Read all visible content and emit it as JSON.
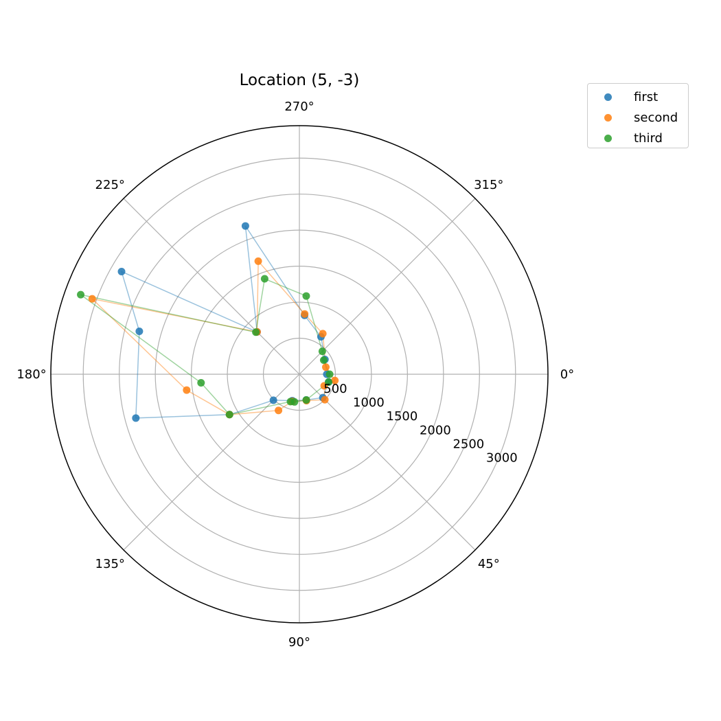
{
  "chart_data": {
    "type": "scatter",
    "projection": "polar",
    "title": "Location (5, -3)",
    "theta_direction": "clockwise",
    "theta_zero": "east",
    "angle_tick_labels": [
      "0°",
      "45°",
      "90°",
      "135°",
      "180°",
      "225°",
      "270°",
      "315°"
    ],
    "radial_ticks": [
      500,
      1000,
      1500,
      2000,
      2500,
      3000
    ],
    "radial_tick_labels": [
      "500",
      "1000",
      "1500",
      "2000",
      "2500",
      "3000"
    ],
    "rlim": [
      0,
      3450
    ],
    "grid": true,
    "legend_position": "upper-right-outside",
    "series": [
      {
        "name": "first",
        "color": "#1f77b4",
        "points": [
          {
            "theta": 0,
            "r": 380
          },
          {
            "theta": 15,
            "r": 420
          },
          {
            "theta": 45,
            "r": 460
          },
          {
            "theta": 75,
            "r": 370
          },
          {
            "theta": 105,
            "r": 380
          },
          {
            "theta": 135,
            "r": 510
          },
          {
            "theta": 150,
            "r": 1120
          },
          {
            "theta": 165,
            "r": 2350
          },
          {
            "theta": 195,
            "r": 2300
          },
          {
            "theta": 210,
            "r": 2850
          },
          {
            "theta": 225,
            "r": 830
          },
          {
            "theta": 250,
            "r": 2190
          },
          {
            "theta": 275,
            "r": 820
          },
          {
            "theta": 300,
            "r": 600
          },
          {
            "theta": 330,
            "r": 410
          }
        ]
      },
      {
        "name": "second",
        "color": "#ff7f0e",
        "points": [
          {
            "theta": 10,
            "r": 500
          },
          {
            "theta": 25,
            "r": 380
          },
          {
            "theta": 45,
            "r": 500
          },
          {
            "theta": 75,
            "r": 380
          },
          {
            "theta": 105,
            "r": 390
          },
          {
            "theta": 120,
            "r": 580
          },
          {
            "theta": 150,
            "r": 1120
          },
          {
            "theta": 172,
            "r": 1580
          },
          {
            "theta": 200,
            "r": 3060
          },
          {
            "theta": 225,
            "r": 830
          },
          {
            "theta": 250,
            "r": 1670
          },
          {
            "theta": 275,
            "r": 840
          },
          {
            "theta": 300,
            "r": 650
          },
          {
            "theta": 345,
            "r": 380
          }
        ]
      },
      {
        "name": "third",
        "color": "#2ca02c",
        "points": [
          {
            "theta": 0,
            "r": 420
          },
          {
            "theta": 15,
            "r": 420
          },
          {
            "theta": 75,
            "r": 370
          },
          {
            "theta": 100,
            "r": 390
          },
          {
            "theta": 108,
            "r": 400
          },
          {
            "theta": 150,
            "r": 1120
          },
          {
            "theta": 175,
            "r": 1370
          },
          {
            "theta": 200,
            "r": 3230
          },
          {
            "theta": 224,
            "r": 840
          },
          {
            "theta": 250,
            "r": 1410
          },
          {
            "theta": 275,
            "r": 1090
          },
          {
            "theta": 315,
            "r": 450
          },
          {
            "theta": 330,
            "r": 390
          }
        ]
      }
    ]
  }
}
